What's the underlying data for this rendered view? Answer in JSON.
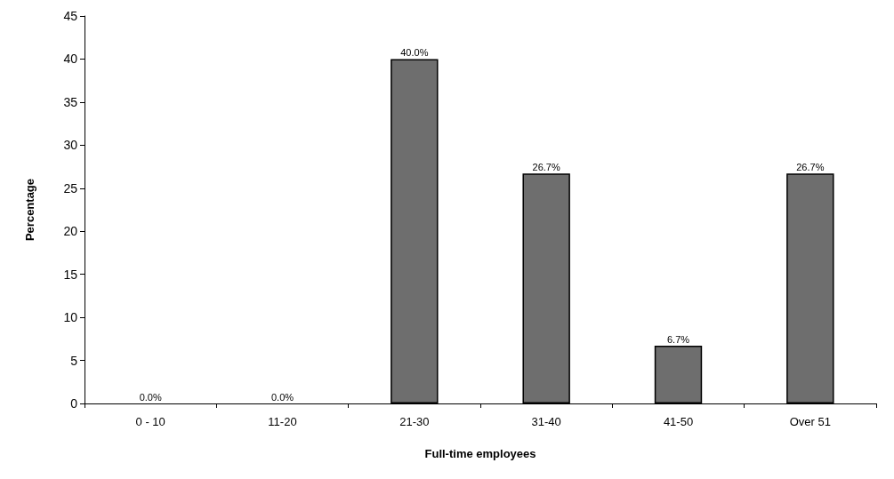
{
  "chart_data": {
    "type": "bar",
    "xlabel": "Full-time employees",
    "ylabel": "Percentage",
    "categories": [
      "0 - 10",
      "11-20",
      "21-30",
      "31-40",
      "41-50",
      "Over 51"
    ],
    "values": [
      0.0,
      0.0,
      40.0,
      26.7,
      6.7,
      26.7
    ],
    "value_labels": [
      "0.0%",
      "0.0%",
      "40.0%",
      "26.7%",
      "6.7%",
      "26.7%"
    ],
    "color": "#6e6e6e",
    "ylim": [
      0,
      45
    ],
    "yticks": [
      0,
      5,
      10,
      15,
      20,
      25,
      30,
      35,
      40,
      45
    ],
    "grid": false
  }
}
